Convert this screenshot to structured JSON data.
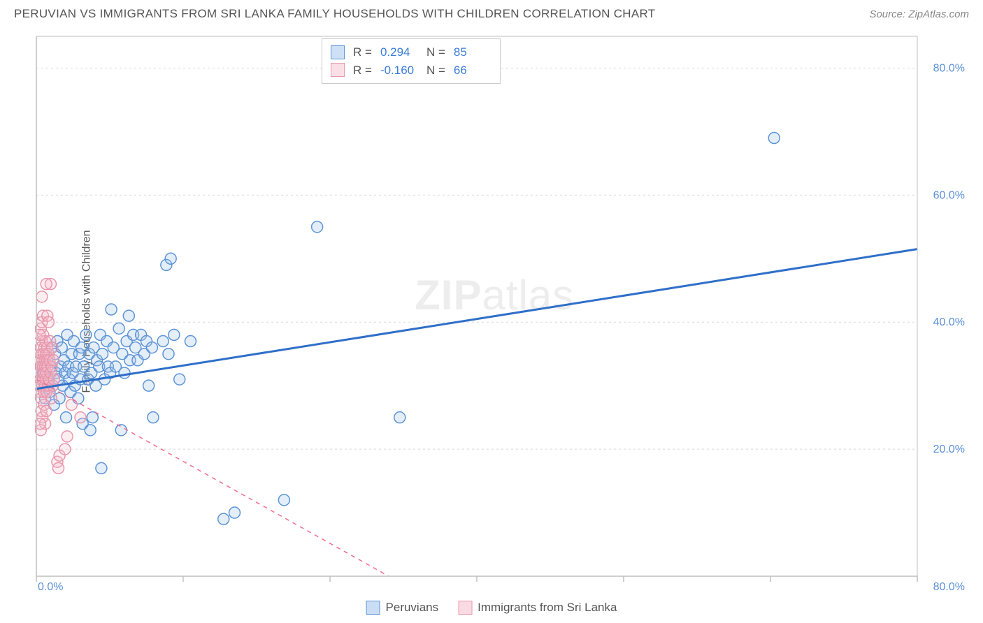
{
  "title": "PERUVIAN VS IMMIGRANTS FROM SRI LANKA FAMILY HOUSEHOLDS WITH CHILDREN CORRELATION CHART",
  "source": "Source: ZipAtlas.com",
  "y_axis_label": "Family Households with Children",
  "watermark": "ZIPatlas",
  "chart": {
    "type": "scatter",
    "xlim": [
      0,
      80
    ],
    "ylim": [
      0,
      85
    ],
    "x_ticks": [
      0,
      13.33,
      26.67,
      40,
      53.33,
      66.67,
      80
    ],
    "y_ticks": [
      20,
      40,
      60,
      80
    ],
    "x_tick_labels": {
      "0": "0.0%",
      "80": "80.0%"
    },
    "y_tick_labels": {
      "20": "20.0%",
      "40": "40.0%",
      "60": "60.0%",
      "80": "80.0%"
    },
    "grid_color": "#d8d8d8",
    "axis_color": "#bfbfbf",
    "background_color": "#ffffff",
    "marker_radius": 8,
    "marker_stroke_width": 1.5,
    "marker_fill_opacity": 0.28,
    "series": [
      {
        "name": "Peruvians",
        "color_stroke": "#5d94d6",
        "color_fill": "#9ec1eb",
        "R": "0.294",
        "N": "85",
        "trend": {
          "x1": 0,
          "y1": 29.5,
          "x2": 80,
          "y2": 51.5,
          "style": "solid",
          "width": 3,
          "color": "#2f6fc9"
        },
        "points": [
          [
            0.5,
            30
          ],
          [
            0.6,
            32
          ],
          [
            0.8,
            28
          ],
          [
            1.0,
            34
          ],
          [
            1.1,
            31
          ],
          [
            1.2,
            29
          ],
          [
            1.3,
            33
          ],
          [
            1.4,
            36
          ],
          [
            1.5,
            30
          ],
          [
            1.6,
            27
          ],
          [
            1.7,
            35
          ],
          [
            1.8,
            32
          ],
          [
            1.9,
            37
          ],
          [
            2.0,
            31
          ],
          [
            2.1,
            28
          ],
          [
            2.2,
            33
          ],
          [
            2.3,
            36
          ],
          [
            2.4,
            30
          ],
          [
            2.5,
            34
          ],
          [
            2.6,
            32
          ],
          [
            2.7,
            25
          ],
          [
            2.8,
            38
          ],
          [
            2.9,
            33
          ],
          [
            3.0,
            31
          ],
          [
            3.1,
            29
          ],
          [
            3.2,
            35
          ],
          [
            3.3,
            32
          ],
          [
            3.4,
            37
          ],
          [
            3.5,
            30
          ],
          [
            3.6,
            33
          ],
          [
            3.8,
            28
          ],
          [
            3.9,
            35
          ],
          [
            4.0,
            31
          ],
          [
            4.1,
            36
          ],
          [
            4.2,
            24
          ],
          [
            4.3,
            33
          ],
          [
            4.5,
            38
          ],
          [
            4.7,
            31
          ],
          [
            4.8,
            35
          ],
          [
            4.9,
            23
          ],
          [
            5.0,
            32
          ],
          [
            5.2,
            36
          ],
          [
            5.4,
            30
          ],
          [
            5.5,
            34
          ],
          [
            5.7,
            33
          ],
          [
            5.8,
            38
          ],
          [
            5.9,
            17
          ],
          [
            5.1,
            25
          ],
          [
            6.0,
            35
          ],
          [
            6.2,
            31
          ],
          [
            6.4,
            37
          ],
          [
            6.5,
            33
          ],
          [
            6.7,
            32
          ],
          [
            6.8,
            42
          ],
          [
            7.0,
            36
          ],
          [
            7.2,
            33
          ],
          [
            7.5,
            39
          ],
          [
            7.8,
            35
          ],
          [
            7.7,
            23
          ],
          [
            8.0,
            32
          ],
          [
            8.2,
            37
          ],
          [
            8.5,
            34
          ],
          [
            8.8,
            38
          ],
          [
            8.4,
            41
          ],
          [
            9.0,
            36
          ],
          [
            9.2,
            34
          ],
          [
            9.5,
            38
          ],
          [
            9.8,
            35
          ],
          [
            10.0,
            37
          ],
          [
            10.2,
            30
          ],
          [
            10.5,
            36
          ],
          [
            10.6,
            25
          ],
          [
            11.5,
            37
          ],
          [
            12.0,
            35
          ],
          [
            12.5,
            38
          ],
          [
            11.8,
            49
          ],
          [
            12.2,
            50
          ],
          [
            13.0,
            31
          ],
          [
            14.0,
            37
          ],
          [
            17.0,
            9
          ],
          [
            18.0,
            10
          ],
          [
            22.5,
            12
          ],
          [
            25.5,
            55
          ],
          [
            33.0,
            25
          ],
          [
            67.0,
            69
          ]
        ]
      },
      {
        "name": "Immigrants from Sri Lanka",
        "color_stroke": "#e896ab",
        "color_fill": "#f6c0cd",
        "R": "-0.160",
        "N": "66",
        "trend": {
          "x1": 0,
          "y1": 31,
          "x2": 32,
          "y2": 0,
          "style": "dashed",
          "width": 1.5,
          "color": "#f06d8e"
        },
        "points": [
          [
            0.2,
            30
          ],
          [
            0.25,
            32
          ],
          [
            0.3,
            34
          ],
          [
            0.32,
            29
          ],
          [
            0.35,
            31
          ],
          [
            0.38,
            36
          ],
          [
            0.4,
            33
          ],
          [
            0.42,
            28
          ],
          [
            0.45,
            35
          ],
          [
            0.48,
            30
          ],
          [
            0.5,
            32
          ],
          [
            0.52,
            37
          ],
          [
            0.55,
            34
          ],
          [
            0.58,
            31
          ],
          [
            0.6,
            33
          ],
          [
            0.62,
            38
          ],
          [
            0.65,
            35
          ],
          [
            0.68,
            29
          ],
          [
            0.7,
            32
          ],
          [
            0.72,
            36
          ],
          [
            0.75,
            34
          ],
          [
            0.78,
            30
          ],
          [
            0.8,
            33
          ],
          [
            0.82,
            37
          ],
          [
            0.85,
            31
          ],
          [
            0.88,
            35
          ],
          [
            0.9,
            32
          ],
          [
            0.92,
            29
          ],
          [
            0.95,
            34
          ],
          [
            0.98,
            36
          ],
          [
            1.0,
            33
          ],
          [
            1.05,
            30
          ],
          [
            1.1,
            35
          ],
          [
            1.15,
            31
          ],
          [
            1.2,
            34
          ],
          [
            1.25,
            37
          ],
          [
            1.3,
            32
          ],
          [
            1.35,
            28
          ],
          [
            1.4,
            33
          ],
          [
            1.45,
            36
          ],
          [
            1.5,
            30
          ],
          [
            1.55,
            34
          ],
          [
            1.6,
            31
          ],
          [
            0.4,
            39
          ],
          [
            0.5,
            40
          ],
          [
            0.3,
            38
          ],
          [
            0.6,
            41
          ],
          [
            0.45,
            26
          ],
          [
            0.55,
            25
          ],
          [
            0.7,
            27
          ],
          [
            0.8,
            24
          ],
          [
            0.9,
            26
          ],
          [
            0.4,
            23
          ],
          [
            0.35,
            24
          ],
          [
            1.3,
            46
          ],
          [
            0.9,
            46
          ],
          [
            0.5,
            44
          ],
          [
            1.0,
            41
          ],
          [
            1.1,
            40
          ],
          [
            1.9,
            18
          ],
          [
            2.1,
            19
          ],
          [
            2.0,
            17
          ],
          [
            2.6,
            20
          ],
          [
            2.8,
            22
          ],
          [
            3.2,
            27
          ],
          [
            4.0,
            25
          ]
        ]
      }
    ]
  },
  "legend_bottom": [
    {
      "label": "Peruvians",
      "stroke": "#5d94d6",
      "fill": "#c9ddf4"
    },
    {
      "label": "Immigrants from Sri Lanka",
      "stroke": "#e896ab",
      "fill": "#fbdbe3"
    }
  ]
}
